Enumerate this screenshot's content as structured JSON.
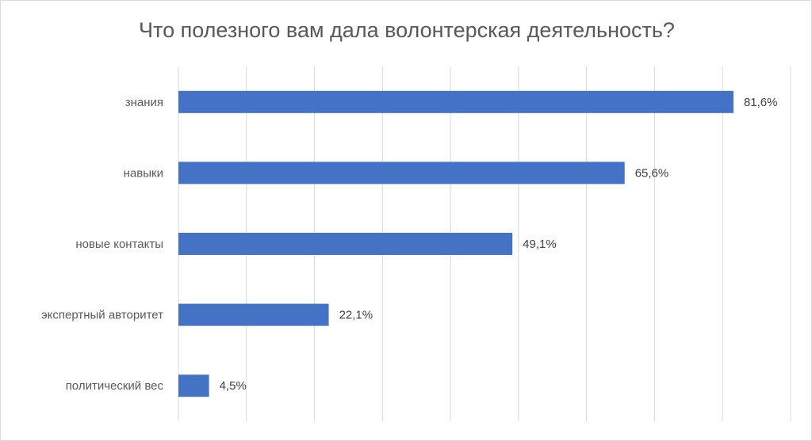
{
  "chart_data": {
    "type": "bar",
    "orientation": "horizontal",
    "title": "Что полезного вам дала волонтерская деятельность?",
    "categories": [
      "знания",
      "навыки",
      "новые контакты",
      "экспертный авторитет",
      "политический вес"
    ],
    "values": [
      81.6,
      65.6,
      49.1,
      22.1,
      4.5
    ],
    "value_labels": [
      "81,6%",
      "65,6%",
      "49,1%",
      "22,1%",
      "4,5%"
    ],
    "xlim": [
      0,
      90
    ],
    "grid_step": 10,
    "grid": true,
    "legend": "none",
    "bar_color": "#4472c4",
    "grid_color": "#d9d9d9"
  }
}
